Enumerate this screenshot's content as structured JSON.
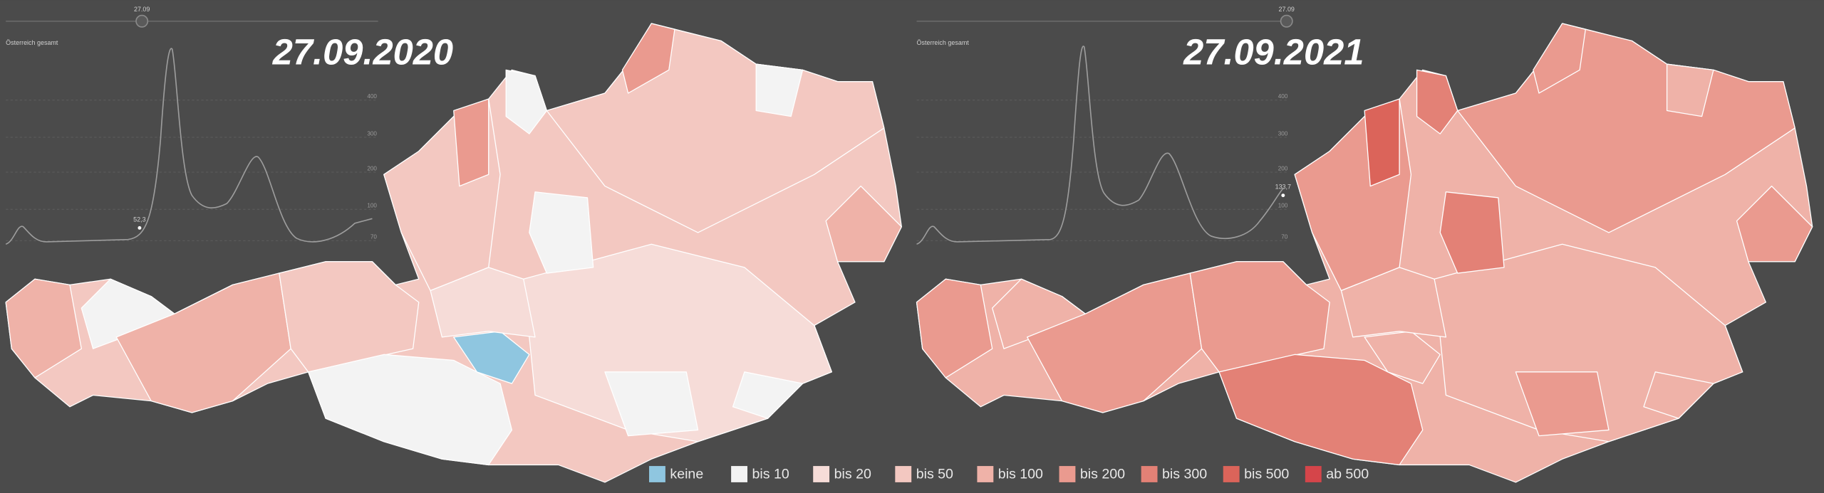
{
  "maps": [
    {
      "date": "27.09.2020",
      "slider_label": "27.09",
      "inset_title": "Österreich gesamt",
      "inset_value": "52,3"
    },
    {
      "date": "27.09.2021",
      "slider_label": "27.09",
      "inset_title": "Österreich gesamt",
      "inset_value": "133,7"
    }
  ],
  "inset_ticks": [
    "400",
    "300",
    "200",
    "100",
    "70"
  ],
  "legend": [
    {
      "label": "keine",
      "color": "#8fc6e0"
    },
    {
      "label": "bis 10",
      "color": "#f3f3f3"
    },
    {
      "label": "bis 20",
      "color": "#f6dcd8"
    },
    {
      "label": "bis 50",
      "color": "#f3c8c1"
    },
    {
      "label": "bis 100",
      "color": "#efb2a8"
    },
    {
      "label": "bis 200",
      "color": "#ea9a8f"
    },
    {
      "label": "bis 300",
      "color": "#e38176"
    },
    {
      "label": "bis 500",
      "color": "#db645a"
    },
    {
      "label": "ab 500",
      "color": "#d5454a"
    }
  ]
}
